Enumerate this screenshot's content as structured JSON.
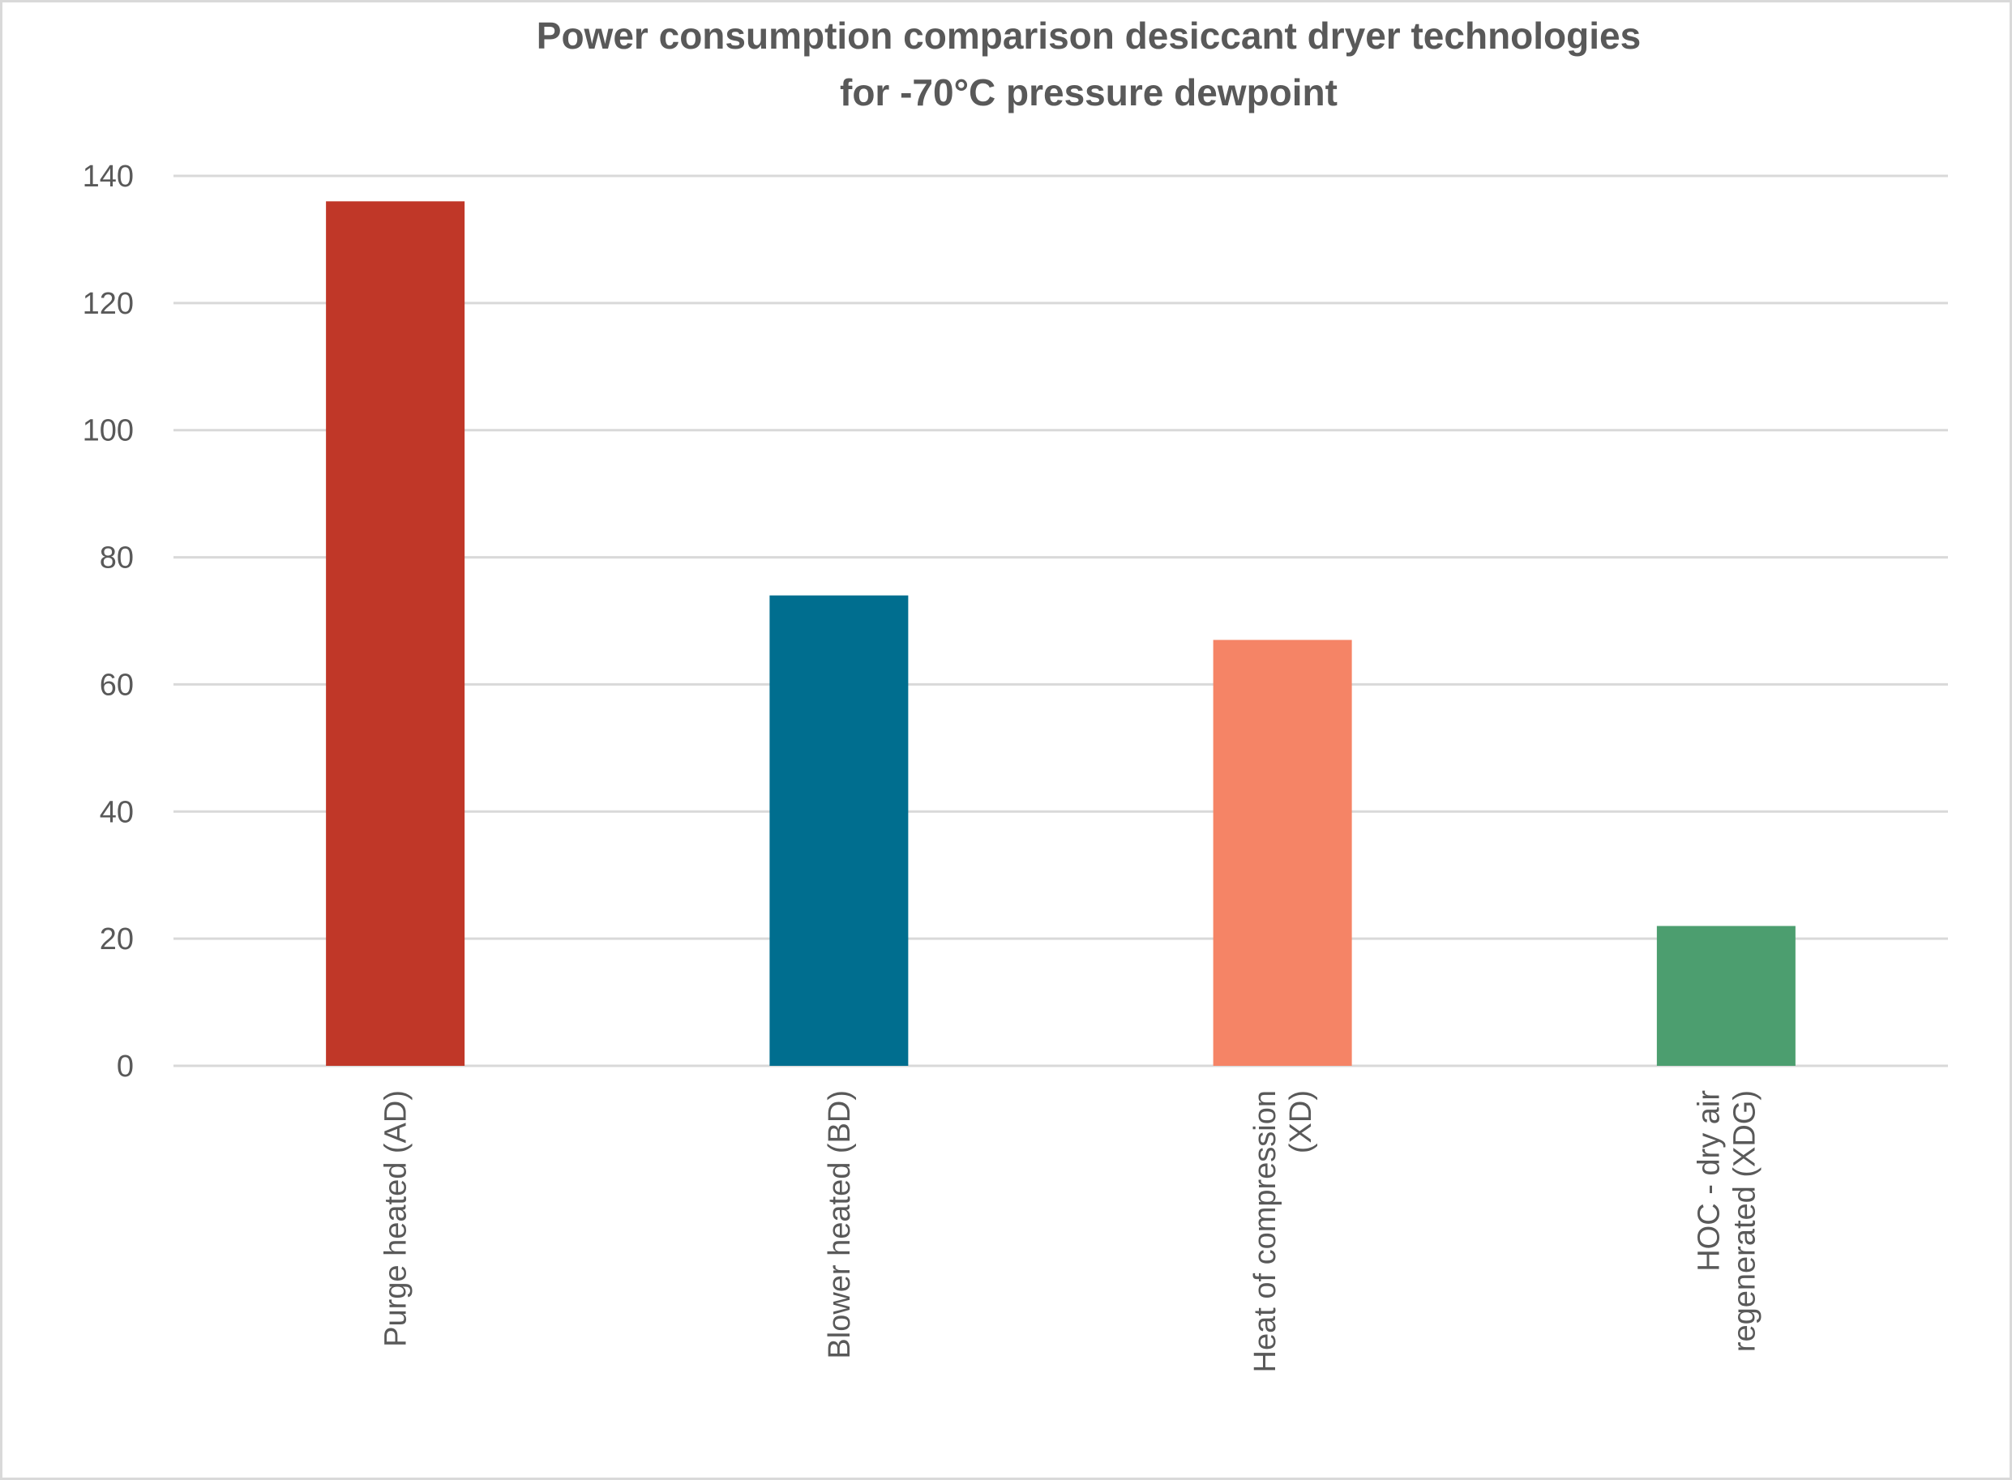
{
  "chart_data": {
    "type": "bar",
    "title": [
      "Power consumption comparison desiccant dryer technologies",
      "for -70°C pressure dewpoint"
    ],
    "xlabel": "",
    "ylabel": "",
    "ylim": [
      0,
      140
    ],
    "yticks": [
      0,
      20,
      40,
      60,
      80,
      100,
      120,
      140
    ],
    "grid": true,
    "legend": "none",
    "categories": [
      [
        "Purge heated (AD)"
      ],
      [
        "Blower heated (BD)"
      ],
      [
        "Heat of compression",
        "(XD)"
      ],
      [
        "HOC - dry air",
        "regenerated (XDG)"
      ]
    ],
    "values": [
      136,
      74,
      67,
      22
    ],
    "colors": [
      "#C03728",
      "#006E8F",
      "#F58466",
      "#4C9E6F"
    ]
  }
}
